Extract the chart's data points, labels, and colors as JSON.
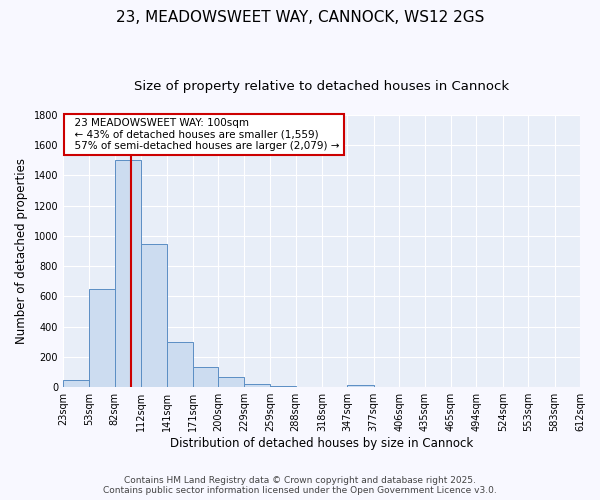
{
  "title": "23, MEADOWSWEET WAY, CANNOCK, WS12 2GS",
  "subtitle": "Size of property relative to detached houses in Cannock",
  "xlabel": "Distribution of detached houses by size in Cannock",
  "ylabel": "Number of detached properties",
  "footer_line1": "Contains HM Land Registry data © Crown copyright and database right 2025.",
  "footer_line2": "Contains public sector information licensed under the Open Government Licence v3.0.",
  "annotation_line1": "23 MEADOWSWEET WAY: 100sqm",
  "annotation_line2": "← 43% of detached houses are smaller (1,559)",
  "annotation_line3": "57% of semi-detached houses are larger (2,079) →",
  "bar_bins": [
    23,
    53,
    82,
    112,
    141,
    171,
    200,
    229,
    259,
    288,
    318,
    347,
    377,
    406,
    435,
    465,
    494,
    524,
    553,
    583,
    612
  ],
  "bar_values": [
    45,
    650,
    1500,
    950,
    300,
    135,
    65,
    20,
    5,
    0,
    0,
    15,
    0,
    0,
    0,
    0,
    0,
    0,
    0,
    0
  ],
  "bar_color": "#ccdcf0",
  "bar_edge_color": "#5b8ec4",
  "property_line_x": 100,
  "ylim": [
    0,
    1800
  ],
  "yticks": [
    0,
    200,
    400,
    600,
    800,
    1000,
    1200,
    1400,
    1600,
    1800
  ],
  "fig_bg_color": "#f8f8ff",
  "plot_bg_color": "#e8eef8",
  "grid_color": "#ffffff",
  "annotation_box_color": "#ffffff",
  "annotation_box_edge": "#cc0000",
  "red_line_color": "#cc0000",
  "title_fontsize": 11,
  "subtitle_fontsize": 9.5,
  "axis_label_fontsize": 8.5,
  "tick_fontsize": 7,
  "annotation_fontsize": 7.5,
  "footer_fontsize": 6.5
}
